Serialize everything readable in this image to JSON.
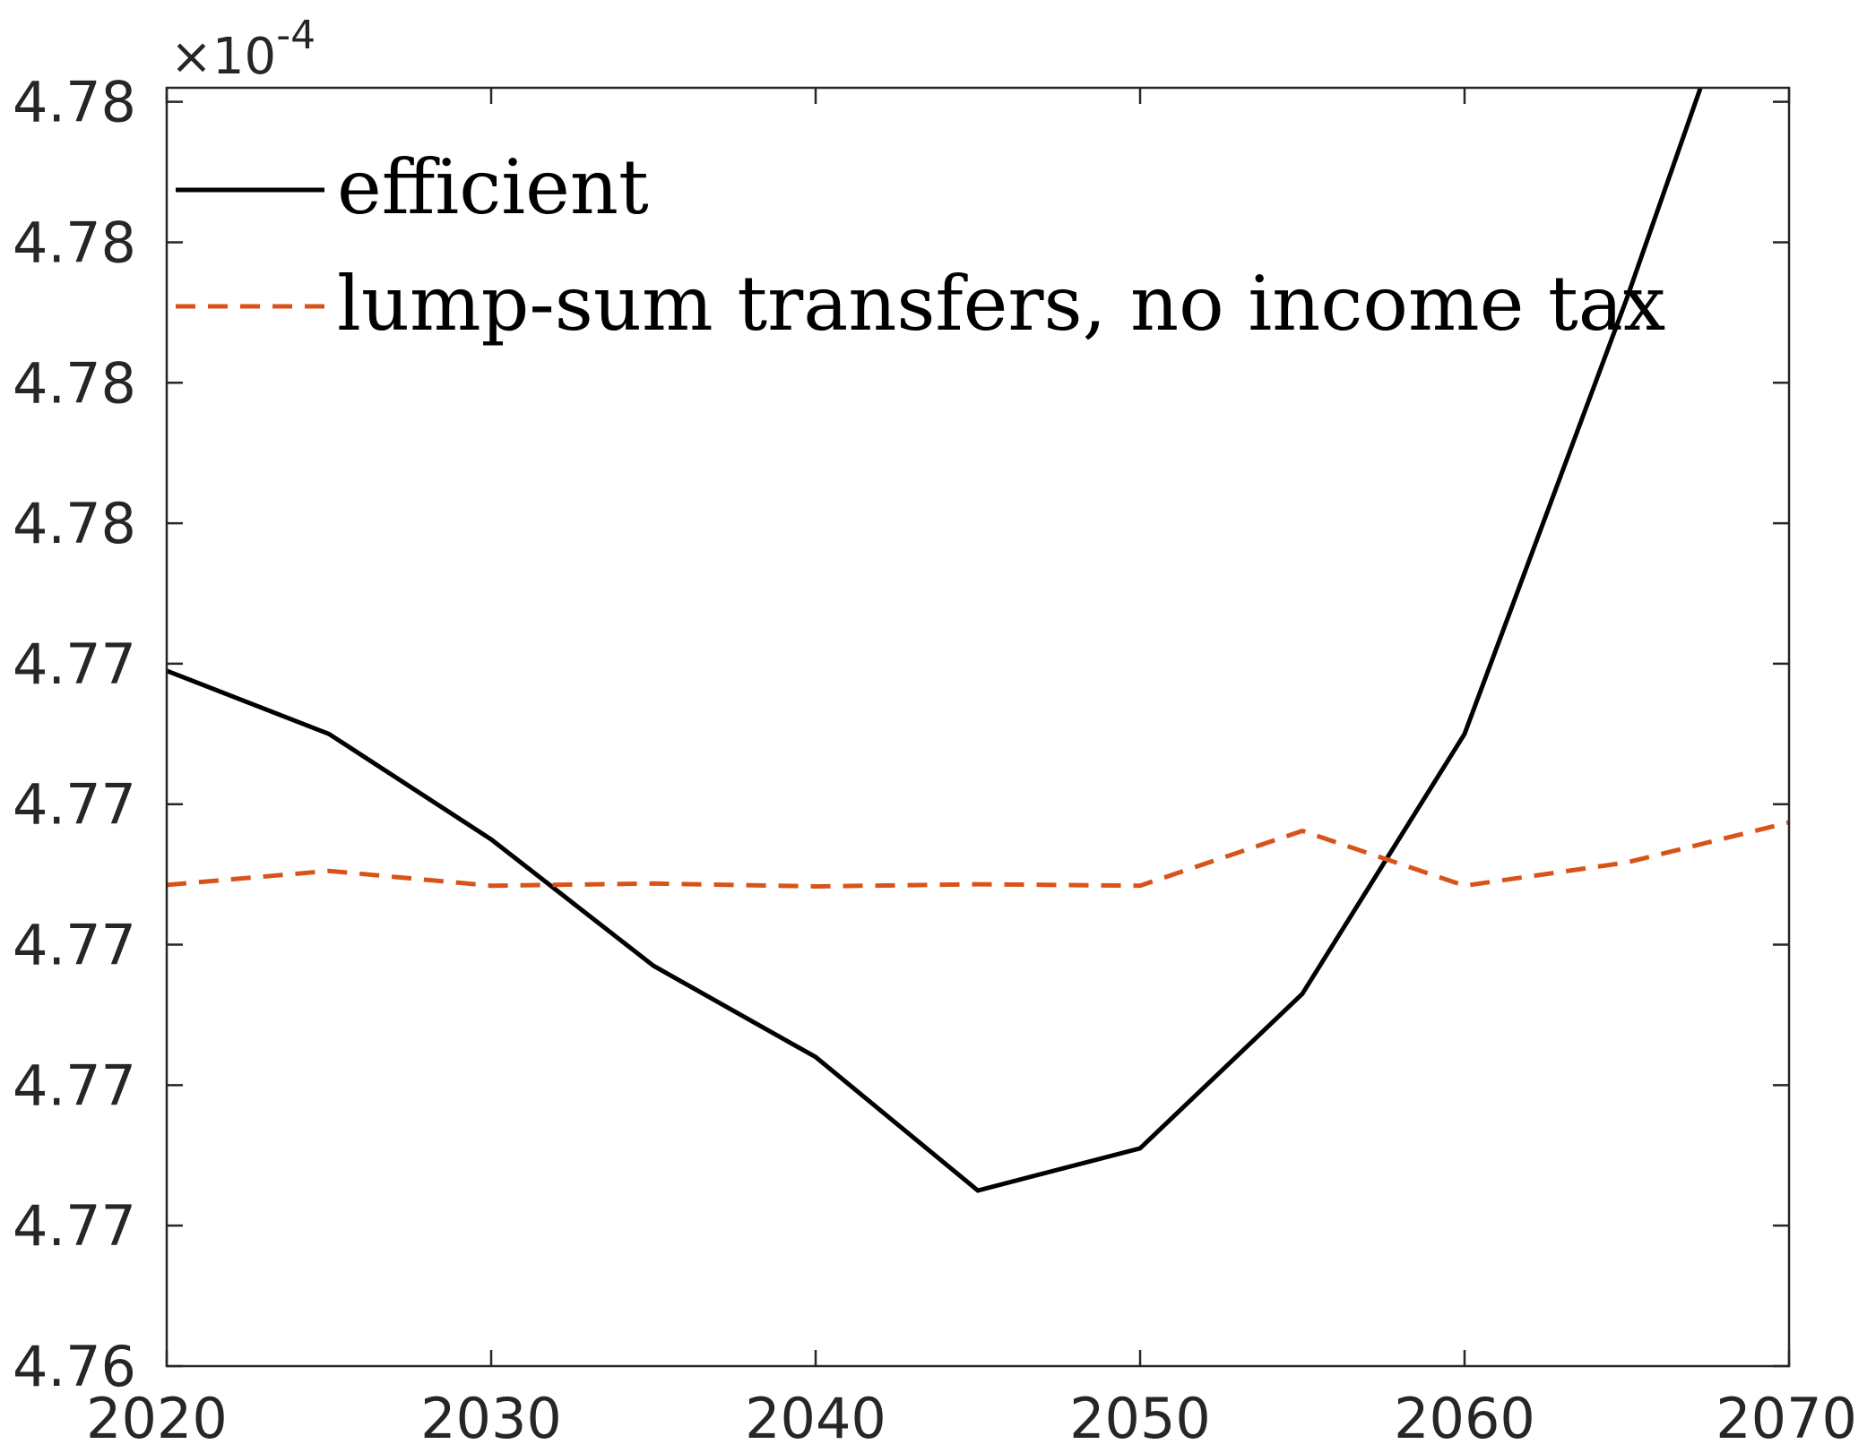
{
  "chart_data": {
    "type": "line",
    "title": "",
    "xlabel": "",
    "ylabel": "",
    "x": [
      2020,
      2025,
      2030,
      2035,
      2040,
      2045,
      2050,
      2055,
      2060,
      2065,
      2070
    ],
    "xlim": [
      2020,
      2070
    ],
    "xticks": [
      2020,
      2030,
      2040,
      2050,
      2060,
      2070
    ],
    "xtick_labels": [
      "2020",
      "2030",
      "2040",
      "2050",
      "2060",
      "2070"
    ],
    "ylim": [
      4.764,
      4.7822
    ],
    "yticks": [
      4.764,
      4.766,
      4.768,
      4.77,
      4.772,
      4.774,
      4.776,
      4.778,
      4.78,
      4.782
    ],
    "ytick_labels": [
      "4.76",
      "4.77",
      "4.77",
      "4.77",
      "4.77",
      "4.77",
      "4.78",
      "4.78",
      "4.78",
      "4.78"
    ],
    "y_multiplier": "×10-4",
    "y_multiplier_base": "×10",
    "y_multiplier_exponent": "-4",
    "grid": false,
    "legend_position": "top-left",
    "series": [
      {
        "name": "efficient",
        "color": "#000000",
        "style": "solid",
        "values": [
          4.7739,
          4.773,
          4.7715,
          4.7697,
          4.7684,
          4.7665,
          4.7671,
          4.7693,
          4.773,
          4.7792,
          4.7858
        ]
      },
      {
        "name": "lump-sum transfers, no income tax",
        "color": "#d95319",
        "style": "dashed",
        "values": [
          4.77085,
          4.77105,
          4.77084,
          4.77087,
          4.77083,
          4.77086,
          4.77084,
          4.77162,
          4.77084,
          4.77117,
          4.77174
        ]
      }
    ]
  }
}
